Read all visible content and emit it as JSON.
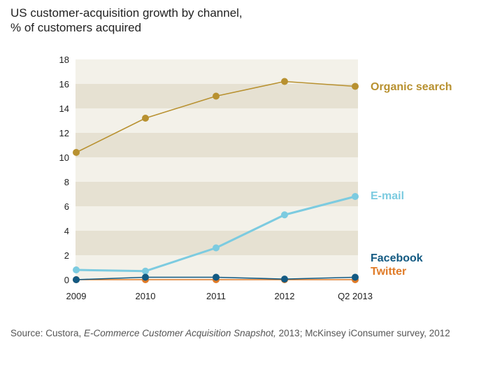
{
  "title_lines": [
    "US customer-acquisition growth by channel,",
    "% of customers acquired"
  ],
  "source": {
    "prefix": "Source: Custora, ",
    "italic": "E-Commerce Customer Acquisition Snapshot,",
    "suffix": " 2013; McKinsey iConsumer survey, 2012"
  },
  "chart_data": {
    "type": "line",
    "title": "US customer-acquisition growth by channel, % of customers acquired",
    "xlabel": "",
    "ylabel": "",
    "categories": [
      "2009",
      "2010",
      "2011",
      "2012",
      "Q2 2013"
    ],
    "ylim": [
      0,
      18
    ],
    "yticks": [
      0,
      2,
      4,
      6,
      8,
      10,
      12,
      14,
      16,
      18
    ],
    "background_bands": true,
    "legend": "inline labels at line ends (right)",
    "series": [
      {
        "name": "Organic search",
        "color": "#b89130",
        "values": [
          10.4,
          13.2,
          15.0,
          16.2,
          15.8
        ]
      },
      {
        "name": "E-mail",
        "color": "#7ccbe0",
        "values": [
          0.8,
          0.7,
          2.6,
          5.3,
          6.8
        ]
      },
      {
        "name": "Facebook",
        "color": "#135a82",
        "values": [
          0.0,
          0.2,
          0.2,
          0.05,
          0.2
        ]
      },
      {
        "name": "Twitter",
        "color": "#e07b28",
        "values": [
          0.0,
          0.0,
          0.0,
          0.0,
          0.0
        ]
      }
    ],
    "colors": {
      "band_light": "#f3f1e9",
      "band_dark": "#e6e1d2",
      "axis": "#444444",
      "tick_text": "#222222"
    }
  }
}
